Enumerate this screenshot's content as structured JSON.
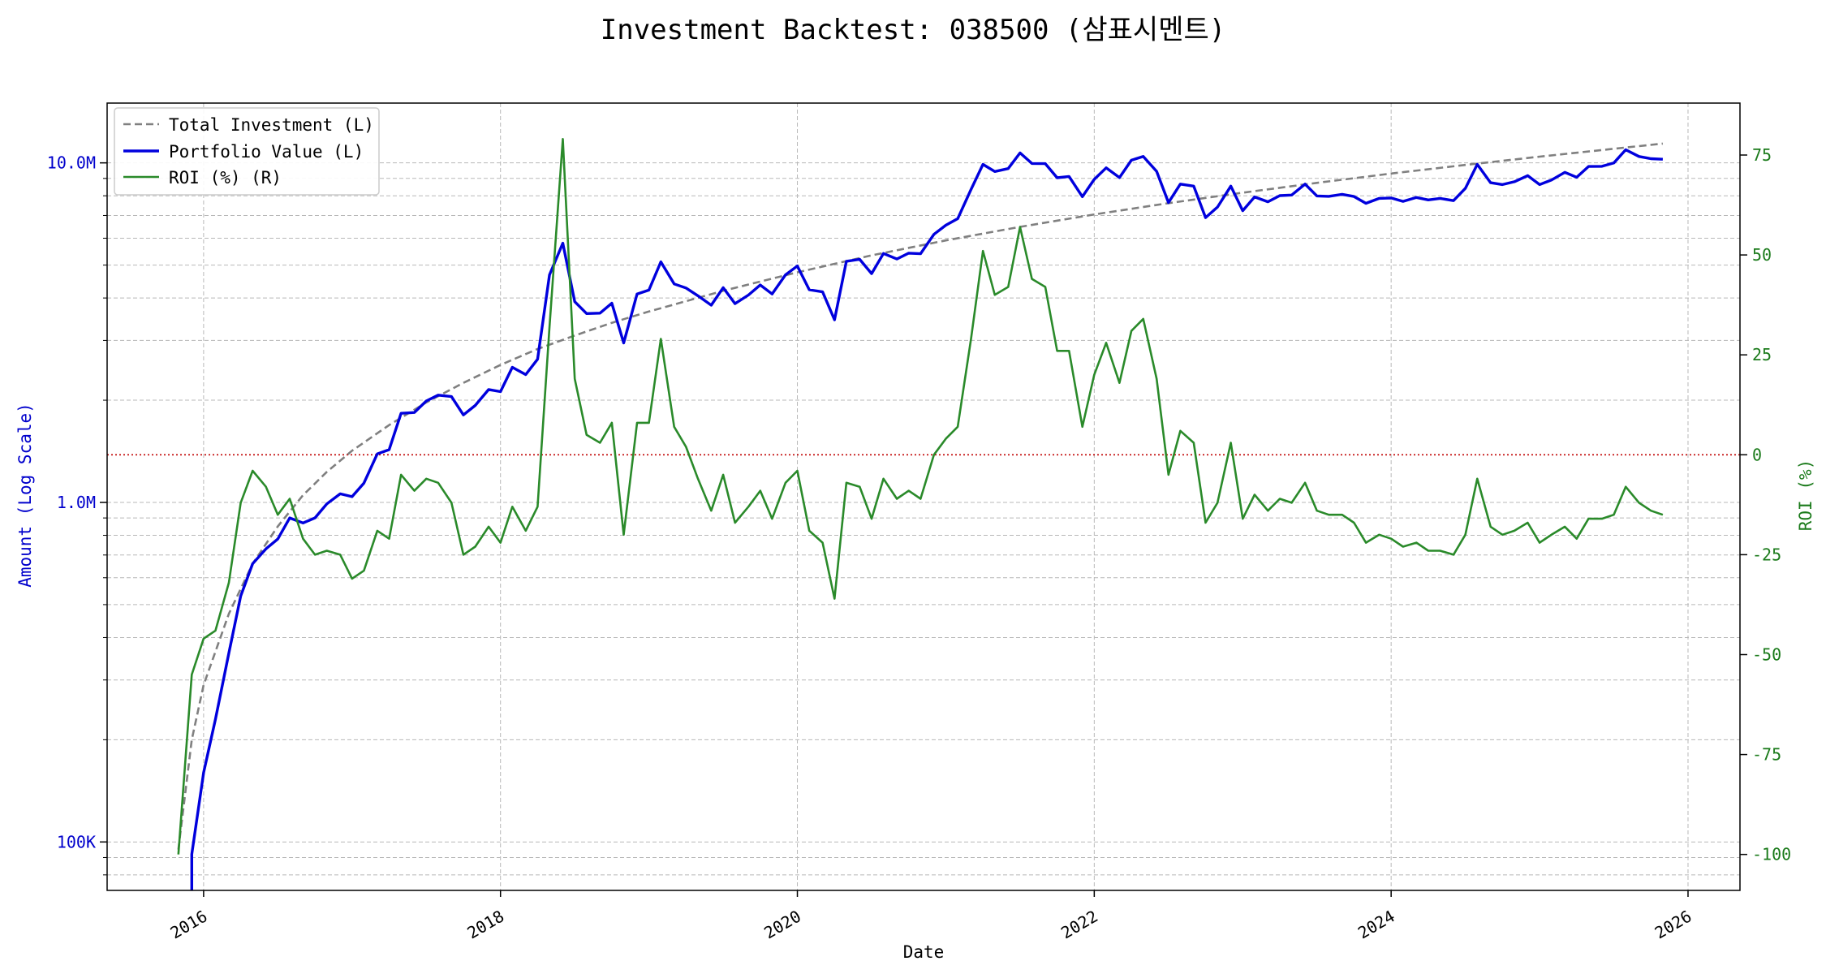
{
  "chart_data": {
    "type": "line",
    "title": "Investment Backtest: 038500 (삼표시멘트)",
    "xlabel": "Date",
    "ylabel_left": "Amount (Log Scale)",
    "ylabel_right": "ROI (%)",
    "left_scale": "log",
    "left_ylim": [
      72000,
      15000000
    ],
    "left_ticks": [
      {
        "v": 100000,
        "label": "100K"
      },
      {
        "v": 1000000,
        "label": "1.0M"
      },
      {
        "v": 10000000,
        "label": "10.0M"
      }
    ],
    "right_ylim": [
      -109,
      88
    ],
    "right_ticks": [
      -100,
      -75,
      -50,
      -25,
      0,
      25,
      50,
      75
    ],
    "xlim": [
      2015.35,
      2026.35
    ],
    "x_ticks": [
      {
        "v": 2016,
        "label": "2016"
      },
      {
        "v": 2018,
        "label": "2018"
      },
      {
        "v": 2020,
        "label": "2020"
      },
      {
        "v": 2022,
        "label": "2022"
      },
      {
        "v": 2024,
        "label": "2024"
      },
      {
        "v": 2026,
        "label": "2026"
      }
    ],
    "grid": true,
    "legend_position": "upper-left",
    "zero_reference_line": {
      "axis": "right",
      "value": 0,
      "color": "#c00000",
      "style": "dotted"
    },
    "colors": {
      "investment": "#808080",
      "portfolio": "#0000dd",
      "roi": "#2a8a2a",
      "left_axis": "#0000cc",
      "right_axis": "#1a7a1a"
    },
    "series": [
      {
        "name": "Total Investment (L)",
        "axis": "left",
        "style": "dashed",
        "x": [
          2015.83,
          2015.92,
          2016.0,
          2016.17,
          2016.33,
          2016.5,
          2016.67,
          2016.83,
          2017.0,
          2017.25,
          2017.5,
          2017.75,
          2018.0,
          2018.25,
          2018.5,
          2018.75,
          2019.0,
          2019.5,
          2020.0,
          2020.5,
          2021.0,
          2021.5,
          2022.0,
          2022.5,
          2023.0,
          2023.5,
          2024.0,
          2024.5,
          2025.0,
          2025.5,
          2025.83
        ],
        "values": [
          95000,
          200000,
          290000,
          470000,
          660000,
          850000,
          1050000,
          1230000,
          1420000,
          1690000,
          1970000,
          2250000,
          2540000,
          2830000,
          3100000,
          3380000,
          3650000,
          4200000,
          4760000,
          5340000,
          5910000,
          6480000,
          7050000,
          7610000,
          8170000,
          8730000,
          9300000,
          9860000,
          10430000,
          11000000,
          11400000
        ]
      },
      {
        "name": "Portfolio Value (L)",
        "axis": "left",
        "style": "solid",
        "x": [
          2015.92,
          2015.92,
          2016.0,
          2016.08,
          2016.17,
          2016.25,
          2016.33,
          2016.42,
          2016.5,
          2016.58,
          2016.67,
          2016.75,
          2016.83,
          2016.92,
          2017.0,
          2017.08,
          2017.17,
          2017.25,
          2017.33,
          2017.42,
          2017.5,
          2017.58,
          2017.67,
          2017.75,
          2017.83,
          2017.92,
          2018.0,
          2018.08,
          2018.17,
          2018.25,
          2018.33,
          2018.42,
          2018.5,
          2018.58,
          2018.67,
          2018.75,
          2018.83,
          2018.92,
          2019.0,
          2019.08,
          2019.17,
          2019.25,
          2019.33,
          2019.42,
          2019.5,
          2019.58,
          2019.67,
          2019.75,
          2019.83,
          2019.92,
          2020.0,
          2020.08,
          2020.17,
          2020.25,
          2020.33,
          2020.42,
          2020.5,
          2020.58,
          2020.67,
          2020.75,
          2020.83,
          2020.92,
          2021.0,
          2021.08,
          2021.17,
          2021.25,
          2021.33,
          2021.42,
          2021.5,
          2021.58,
          2021.67,
          2021.75,
          2021.83,
          2021.92,
          2022.0,
          2022.08,
          2022.17,
          2022.25,
          2022.33,
          2022.42,
          2022.5,
          2022.58,
          2022.67,
          2022.75,
          2022.83,
          2022.92,
          2023.0,
          2023.08,
          2023.17,
          2023.25,
          2023.33,
          2023.42,
          2023.5,
          2023.58,
          2023.67,
          2023.75,
          2023.83,
          2023.92,
          2024.0,
          2024.08,
          2024.17,
          2024.25,
          2024.33,
          2024.42,
          2024.5,
          2024.58,
          2024.67,
          2024.75,
          2024.83,
          2024.92,
          2025.0,
          2025.08,
          2025.17,
          2025.25,
          2025.33,
          2025.42,
          2025.5,
          2025.58,
          2025.67,
          2025.75,
          2025.83
        ],
        "values": [
          72000,
          92000,
          160000,
          230000,
          360000,
          530000,
          660000,
          730000,
          780000,
          900000,
          870000,
          900000,
          990000,
          1060000,
          1040000,
          1140000,
          1390000,
          1430000,
          1830000,
          1840000,
          1990000,
          2070000,
          2050000,
          1810000,
          1930000,
          2150000,
          2120000,
          2500000,
          2380000,
          2640000,
          4680000,
          5800000,
          3900000,
          3600000,
          3610000,
          3860000,
          2950000,
          4110000,
          4220000,
          5110000,
          4400000,
          4280000,
          4060000,
          3810000,
          4290000,
          3850000,
          4080000,
          4370000,
          4110000,
          4680000,
          4970000,
          4230000,
          4170000,
          3450000,
          5130000,
          5200000,
          4720000,
          5410000,
          5210000,
          5420000,
          5400000,
          6160000,
          6550000,
          6850000,
          8350000,
          9900000,
          9430000,
          9620000,
          10700000,
          9960000,
          9950000,
          9040000,
          9120000,
          7950000,
          8940000,
          9670000,
          9050000,
          10180000,
          10450000,
          9440000,
          7640000,
          8660000,
          8540000,
          6900000,
          7410000,
          8540000,
          7230000,
          7940000,
          7680000,
          8010000,
          8040000,
          8660000,
          7990000,
          7970000,
          8080000,
          7960000,
          7600000,
          7860000,
          7880000,
          7700000,
          7910000,
          7780000,
          7860000,
          7740000,
          8410000,
          9900000,
          8740000,
          8630000,
          8800000,
          9170000,
          8630000,
          8900000,
          9380000,
          9070000,
          9760000,
          9770000,
          9990000,
          10930000,
          10440000,
          10290000,
          10250000
        ]
      },
      {
        "name": "ROI (%) (R)",
        "axis": "right",
        "style": "solid",
        "x": [
          2015.83,
          2015.92,
          2016.0,
          2016.08,
          2016.17,
          2016.25,
          2016.33,
          2016.42,
          2016.5,
          2016.58,
          2016.67,
          2016.75,
          2016.83,
          2016.92,
          2017.0,
          2017.08,
          2017.17,
          2017.25,
          2017.33,
          2017.42,
          2017.5,
          2017.58,
          2017.67,
          2017.75,
          2017.83,
          2017.92,
          2018.0,
          2018.08,
          2018.17,
          2018.25,
          2018.33,
          2018.42,
          2018.5,
          2018.58,
          2018.67,
          2018.75,
          2018.83,
          2018.92,
          2019.0,
          2019.08,
          2019.17,
          2019.25,
          2019.33,
          2019.42,
          2019.5,
          2019.58,
          2019.67,
          2019.75,
          2019.83,
          2019.92,
          2020.0,
          2020.08,
          2020.17,
          2020.25,
          2020.33,
          2020.42,
          2020.5,
          2020.58,
          2020.67,
          2020.75,
          2020.83,
          2020.92,
          2021.0,
          2021.08,
          2021.17,
          2021.25,
          2021.33,
          2021.42,
          2021.5,
          2021.58,
          2021.67,
          2021.75,
          2021.83,
          2021.92,
          2022.0,
          2022.08,
          2022.17,
          2022.25,
          2022.33,
          2022.42,
          2022.5,
          2022.58,
          2022.67,
          2022.75,
          2022.83,
          2022.92,
          2023.0,
          2023.08,
          2023.17,
          2023.25,
          2023.33,
          2023.42,
          2023.5,
          2023.58,
          2023.67,
          2023.75,
          2023.83,
          2023.92,
          2024.0,
          2024.08,
          2024.17,
          2024.25,
          2024.33,
          2024.42,
          2024.5,
          2024.58,
          2024.67,
          2024.75,
          2024.83,
          2024.92,
          2025.0,
          2025.08,
          2025.17,
          2025.25,
          2025.33,
          2025.42,
          2025.5,
          2025.58,
          2025.67,
          2025.75,
          2025.83
        ],
        "values": [
          -100,
          -55,
          -46,
          -44,
          -32,
          -12,
          -4,
          -8,
          -15,
          -11,
          -21,
          -25,
          -24,
          -25,
          -31,
          -29,
          -19,
          -21,
          -5,
          -9,
          -6,
          -7,
          -12,
          -25,
          -23,
          -18,
          -22,
          -13,
          -19,
          -13,
          32,
          79,
          19,
          5,
          3,
          8,
          -20,
          8,
          8,
          29,
          7,
          2,
          -6,
          -14,
          -5,
          -17,
          -13,
          -9,
          -16,
          -7,
          -4,
          -19,
          -22,
          -36,
          -7,
          -8,
          -16,
          -6,
          -11,
          -9,
          -11,
          0,
          4,
          7,
          29,
          51,
          40,
          42,
          57,
          44,
          42,
          26,
          26,
          7,
          20,
          28,
          18,
          31,
          34,
          19,
          -5,
          6,
          3,
          -17,
          -12,
          3,
          -16,
          -10,
          -14,
          -11,
          -12,
          -7,
          -14,
          -15,
          -15,
          -17,
          -22,
          -20,
          -21,
          -23,
          -22,
          -24,
          -24,
          -25,
          -20,
          -6,
          -18,
          -20,
          -19,
          -17,
          -22,
          -20,
          -18,
          -21,
          -16,
          -16,
          -15,
          -8,
          -12,
          -14,
          -15
        ]
      }
    ]
  }
}
